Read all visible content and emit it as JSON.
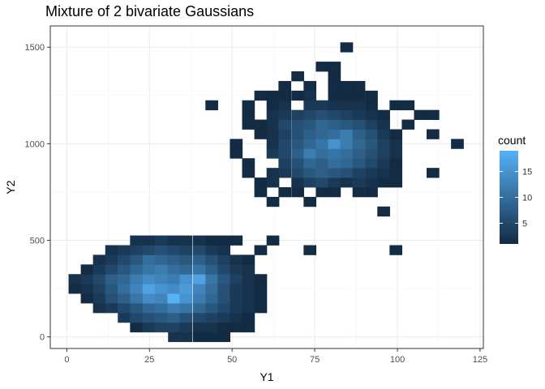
{
  "chart_data": {
    "type": "heatmap",
    "title": "Mixture of 2 bivariate Gaussians",
    "xlabel": "Y1",
    "ylabel": "Y2",
    "xlim": [
      -5,
      126
    ],
    "ylim": [
      -60,
      1610
    ],
    "xticks": [
      0,
      25,
      50,
      75,
      100,
      125
    ],
    "yticks": [
      0,
      500,
      1000,
      1500
    ],
    "grid": true,
    "bin_width_x": 3.75,
    "bin_width_y": 50,
    "legend": {
      "title": "count",
      "position": "right",
      "ticks": [
        5,
        10,
        15
      ],
      "min": 1,
      "max": 19
    },
    "color_low": "#132B43",
    "color_high": "#56B1F7",
    "bins": [
      [
        32.5,
        0,
        2
      ],
      [
        36,
        0,
        2
      ],
      [
        40,
        0,
        1
      ],
      [
        43.8,
        0,
        1
      ],
      [
        47.5,
        0,
        1
      ],
      [
        21,
        50,
        1
      ],
      [
        24.8,
        50,
        3
      ],
      [
        28.5,
        50,
        4
      ],
      [
        32.3,
        50,
        4
      ],
      [
        36,
        50,
        3
      ],
      [
        40,
        50,
        2
      ],
      [
        43.8,
        50,
        2
      ],
      [
        47.5,
        50,
        1
      ],
      [
        51.2,
        50,
        1
      ],
      [
        54.9,
        50,
        1
      ],
      [
        17.3,
        100,
        3
      ],
      [
        21,
        100,
        5
      ],
      [
        24.8,
        100,
        6
      ],
      [
        28.5,
        100,
        7
      ],
      [
        32.3,
        100,
        8
      ],
      [
        36,
        100,
        6
      ],
      [
        40,
        100,
        5
      ],
      [
        43.8,
        100,
        4
      ],
      [
        47.5,
        100,
        3
      ],
      [
        51.2,
        100,
        2
      ],
      [
        54.9,
        100,
        1
      ],
      [
        9.8,
        150,
        2
      ],
      [
        13.5,
        150,
        3
      ],
      [
        17.3,
        150,
        5
      ],
      [
        21,
        150,
        7
      ],
      [
        24.8,
        150,
        9
      ],
      [
        28.5,
        150,
        10
      ],
      [
        32.3,
        150,
        12
      ],
      [
        36,
        150,
        11
      ],
      [
        40,
        150,
        9
      ],
      [
        43.8,
        150,
        7
      ],
      [
        47.5,
        150,
        5
      ],
      [
        51.2,
        150,
        3
      ],
      [
        54.9,
        150,
        2
      ],
      [
        58.6,
        150,
        1
      ],
      [
        6.1,
        200,
        1
      ],
      [
        9.8,
        200,
        3
      ],
      [
        13.5,
        200,
        6
      ],
      [
        17.3,
        200,
        8
      ],
      [
        21,
        200,
        11
      ],
      [
        24.8,
        200,
        14
      ],
      [
        28.5,
        200,
        13
      ],
      [
        32.3,
        200,
        19
      ],
      [
        36,
        200,
        15
      ],
      [
        40,
        200,
        12
      ],
      [
        43.8,
        200,
        9
      ],
      [
        47.5,
        200,
        6
      ],
      [
        51.2,
        200,
        3
      ],
      [
        54.9,
        200,
        2
      ],
      [
        58.6,
        200,
        1
      ],
      [
        2.4,
        250,
        1
      ],
      [
        6.1,
        250,
        2
      ],
      [
        9.8,
        250,
        4
      ],
      [
        13.5,
        250,
        7
      ],
      [
        17.3,
        250,
        10
      ],
      [
        21,
        250,
        13
      ],
      [
        24.8,
        250,
        17
      ],
      [
        28.5,
        250,
        15
      ],
      [
        32.3,
        250,
        14
      ],
      [
        36,
        250,
        16
      ],
      [
        40,
        250,
        13
      ],
      [
        43.8,
        250,
        10
      ],
      [
        47.5,
        250,
        6
      ],
      [
        51.2,
        250,
        3
      ],
      [
        54.9,
        250,
        2
      ],
      [
        58.6,
        250,
        1
      ],
      [
        2.4,
        300,
        2
      ],
      [
        6.1,
        300,
        3
      ],
      [
        9.8,
        300,
        5
      ],
      [
        13.5,
        300,
        8
      ],
      [
        17.3,
        300,
        9
      ],
      [
        21,
        300,
        12
      ],
      [
        24.8,
        300,
        14
      ],
      [
        28.5,
        300,
        13
      ],
      [
        32.3,
        300,
        12
      ],
      [
        36,
        300,
        15
      ],
      [
        40,
        300,
        17
      ],
      [
        43.8,
        300,
        11
      ],
      [
        47.5,
        300,
        7
      ],
      [
        51.2,
        300,
        4
      ],
      [
        54.9,
        300,
        2
      ],
      [
        58.6,
        300,
        1
      ],
      [
        6.1,
        350,
        1
      ],
      [
        9.8,
        350,
        3
      ],
      [
        13.5,
        350,
        5
      ],
      [
        17.3,
        350,
        7
      ],
      [
        21,
        350,
        9
      ],
      [
        24.8,
        350,
        11
      ],
      [
        28.5,
        350,
        12
      ],
      [
        32.3,
        350,
        10
      ],
      [
        36,
        350,
        9
      ],
      [
        40,
        350,
        11
      ],
      [
        43.8,
        350,
        8
      ],
      [
        47.5,
        350,
        5
      ],
      [
        51.2,
        350,
        3
      ],
      [
        54.9,
        350,
        2
      ],
      [
        9.8,
        400,
        2
      ],
      [
        13.5,
        400,
        3
      ],
      [
        17.3,
        400,
        5
      ],
      [
        21,
        400,
        7
      ],
      [
        24.8,
        400,
        10
      ],
      [
        28.5,
        400,
        9
      ],
      [
        32.3,
        400,
        8
      ],
      [
        36,
        400,
        7
      ],
      [
        40,
        400,
        8
      ],
      [
        43.8,
        400,
        6
      ],
      [
        47.5,
        400,
        4
      ],
      [
        51.2,
        400,
        2
      ],
      [
        54.9,
        400,
        1
      ],
      [
        13.5,
        450,
        2
      ],
      [
        17.3,
        450,
        3
      ],
      [
        21,
        450,
        4
      ],
      [
        24.8,
        450,
        5
      ],
      [
        28.5,
        450,
        6
      ],
      [
        32.3,
        450,
        5
      ],
      [
        36,
        450,
        4
      ],
      [
        40,
        450,
        5
      ],
      [
        43.8,
        450,
        3
      ],
      [
        47.5,
        450,
        2
      ],
      [
        58.6,
        450,
        1
      ],
      [
        21,
        500,
        2
      ],
      [
        24.8,
        500,
        2
      ],
      [
        28.5,
        500,
        3
      ],
      [
        32.3,
        500,
        2
      ],
      [
        36,
        500,
        2
      ],
      [
        40,
        500,
        2
      ],
      [
        43.8,
        500,
        1
      ],
      [
        47.5,
        500,
        1
      ],
      [
        51.2,
        500,
        1
      ],
      [
        62.3,
        500,
        1
      ],
      [
        73.5,
        450,
        1
      ],
      [
        99.5,
        450,
        1
      ],
      [
        62.3,
        700,
        1
      ],
      [
        73.5,
        700,
        1
      ],
      [
        95.8,
        650,
        1
      ],
      [
        58.6,
        750,
        1
      ],
      [
        65.9,
        750,
        1
      ],
      [
        69.8,
        750,
        1
      ],
      [
        77.2,
        750,
        1
      ],
      [
        80.9,
        750,
        1
      ],
      [
        88.3,
        750,
        1
      ],
      [
        92.1,
        750,
        1
      ],
      [
        58.6,
        800,
        1
      ],
      [
        62.3,
        800,
        2
      ],
      [
        69.8,
        800,
        2
      ],
      [
        73.5,
        800,
        4
      ],
      [
        77.2,
        800,
        5
      ],
      [
        80.9,
        800,
        3
      ],
      [
        84.6,
        800,
        2
      ],
      [
        88.3,
        800,
        3
      ],
      [
        92.1,
        800,
        2
      ],
      [
        95.8,
        800,
        1
      ],
      [
        99.5,
        800,
        1
      ],
      [
        54.9,
        850,
        1
      ],
      [
        62.3,
        850,
        2
      ],
      [
        65.9,
        850,
        3
      ],
      [
        69.8,
        850,
        5
      ],
      [
        73.5,
        850,
        7
      ],
      [
        77.2,
        850,
        8
      ],
      [
        80.9,
        850,
        7
      ],
      [
        84.6,
        850,
        6
      ],
      [
        88.3,
        850,
        4
      ],
      [
        92.1,
        850,
        3
      ],
      [
        95.8,
        850,
        2
      ],
      [
        99.5,
        850,
        1
      ],
      [
        110.7,
        850,
        1
      ],
      [
        54.9,
        900,
        1
      ],
      [
        65.9,
        900,
        4
      ],
      [
        69.8,
        900,
        6
      ],
      [
        73.5,
        900,
        9
      ],
      [
        77.2,
        900,
        8
      ],
      [
        80.9,
        900,
        10
      ],
      [
        84.6,
        900,
        9
      ],
      [
        88.3,
        900,
        7
      ],
      [
        92.1,
        900,
        5
      ],
      [
        95.8,
        900,
        3
      ],
      [
        99.5,
        900,
        1
      ],
      [
        51.2,
        950,
        1
      ],
      [
        62.3,
        950,
        3
      ],
      [
        65.9,
        950,
        5
      ],
      [
        69.8,
        950,
        8
      ],
      [
        73.5,
        950,
        12
      ],
      [
        77.2,
        950,
        10
      ],
      [
        80.9,
        950,
        11
      ],
      [
        84.6,
        950,
        10
      ],
      [
        88.3,
        950,
        8
      ],
      [
        92.1,
        950,
        6
      ],
      [
        95.8,
        950,
        4
      ],
      [
        99.5,
        950,
        2
      ],
      [
        51.2,
        1000,
        1
      ],
      [
        62.3,
        1000,
        2
      ],
      [
        65.9,
        1000,
        5
      ],
      [
        69.8,
        1000,
        7
      ],
      [
        73.5,
        1000,
        9
      ],
      [
        77.2,
        1000,
        11
      ],
      [
        80.9,
        1000,
        15
      ],
      [
        84.6,
        1000,
        12
      ],
      [
        88.3,
        1000,
        9
      ],
      [
        92.1,
        1000,
        7
      ],
      [
        95.8,
        1000,
        4
      ],
      [
        99.5,
        1000,
        2
      ],
      [
        118.1,
        1000,
        1
      ],
      [
        58.6,
        1050,
        1
      ],
      [
        62.3,
        1050,
        2
      ],
      [
        65.9,
        1050,
        4
      ],
      [
        69.8,
        1050,
        6
      ],
      [
        73.5,
        1050,
        8
      ],
      [
        77.2,
        1050,
        9
      ],
      [
        80.9,
        1050,
        10
      ],
      [
        84.6,
        1050,
        12
      ],
      [
        88.3,
        1050,
        8
      ],
      [
        92.1,
        1050,
        6
      ],
      [
        95.8,
        1050,
        3
      ],
      [
        99.5,
        1050,
        1
      ],
      [
        110.7,
        1050,
        1
      ],
      [
        54.9,
        1100,
        1
      ],
      [
        58.6,
        1100,
        1
      ],
      [
        62.3,
        1100,
        2
      ],
      [
        65.9,
        1100,
        5
      ],
      [
        69.8,
        1100,
        6
      ],
      [
        73.5,
        1100,
        7
      ],
      [
        77.2,
        1100,
        9
      ],
      [
        80.9,
        1100,
        8
      ],
      [
        84.6,
        1100,
        7
      ],
      [
        88.3,
        1100,
        6
      ],
      [
        92.1,
        1100,
        4
      ],
      [
        95.8,
        1100,
        2
      ],
      [
        103.2,
        1100,
        1
      ],
      [
        54.9,
        1150,
        1
      ],
      [
        62.3,
        1150,
        2
      ],
      [
        65.9,
        1150,
        3
      ],
      [
        69.8,
        1150,
        4
      ],
      [
        73.5,
        1150,
        5
      ],
      [
        77.2,
        1150,
        6
      ],
      [
        80.9,
        1150,
        5
      ],
      [
        84.6,
        1150,
        4
      ],
      [
        88.3,
        1150,
        3
      ],
      [
        92.1,
        1150,
        2
      ],
      [
        95.8,
        1150,
        1
      ],
      [
        106.9,
        1150,
        1
      ],
      [
        110.7,
        1150,
        1
      ],
      [
        43.8,
        1200,
        1
      ],
      [
        54.9,
        1200,
        1
      ],
      [
        62.3,
        1200,
        1
      ],
      [
        65.9,
        1200,
        2
      ],
      [
        73.5,
        1200,
        3
      ],
      [
        77.2,
        1200,
        3
      ],
      [
        80.9,
        1200,
        2
      ],
      [
        84.6,
        1200,
        2
      ],
      [
        88.3,
        1200,
        2
      ],
      [
        92.1,
        1200,
        1
      ],
      [
        99.5,
        1200,
        1
      ],
      [
        103.2,
        1200,
        1
      ],
      [
        58.6,
        1250,
        1
      ],
      [
        62.3,
        1250,
        1
      ],
      [
        65.9,
        1250,
        1
      ],
      [
        69.8,
        1250,
        1
      ],
      [
        73.5,
        1250,
        2
      ],
      [
        80.9,
        1250,
        1
      ],
      [
        84.6,
        1250,
        1
      ],
      [
        88.3,
        1250,
        1
      ],
      [
        92.1,
        1250,
        1
      ],
      [
        65.9,
        1300,
        1
      ],
      [
        73.5,
        1300,
        1
      ],
      [
        80.9,
        1300,
        1
      ],
      [
        84.6,
        1300,
        1
      ],
      [
        88.3,
        1300,
        1
      ],
      [
        69.8,
        1350,
        1
      ],
      [
        80.9,
        1350,
        1
      ],
      [
        77.2,
        1400,
        1
      ],
      [
        80.9,
        1400,
        1
      ],
      [
        84.6,
        1500,
        1
      ]
    ]
  }
}
